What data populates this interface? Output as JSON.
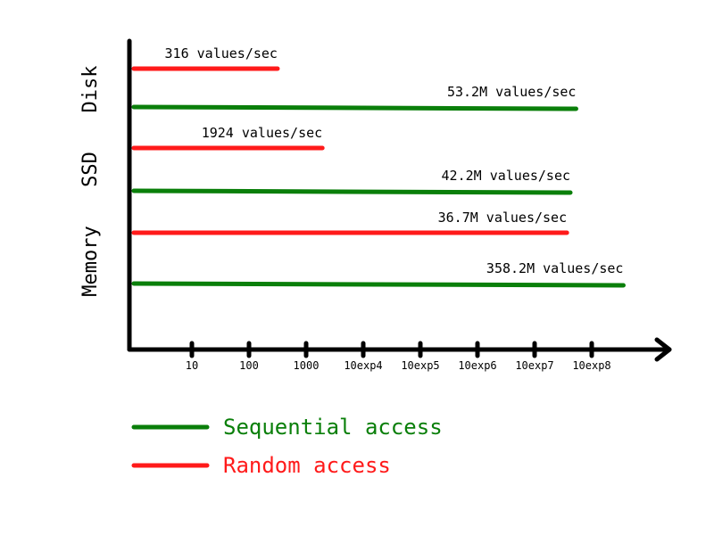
{
  "chart_data": {
    "type": "bar",
    "orientation": "horizontal",
    "x_scale": "log10",
    "x_ticks": [
      {
        "value": 10,
        "label": "10"
      },
      {
        "value": 100,
        "label": "100"
      },
      {
        "value": 1000,
        "label": "1000"
      },
      {
        "value": 10000,
        "label": "10exp4"
      },
      {
        "value": 100000,
        "label": "10exp5"
      },
      {
        "value": 1000000,
        "label": "10exp6"
      },
      {
        "value": 10000000,
        "label": "10exp7"
      },
      {
        "value": 100000000,
        "label": "10exp8"
      }
    ],
    "groups": [
      {
        "label": "Disk",
        "bars": [
          {
            "series": "Random access",
            "value": 316,
            "label": "316 values/sec"
          },
          {
            "series": "Sequential access",
            "value": 53200000,
            "label": "53.2M values/sec"
          }
        ]
      },
      {
        "label": "SSD",
        "bars": [
          {
            "series": "Random access",
            "value": 1924,
            "label": "1924 values/sec"
          },
          {
            "series": "Sequential access",
            "value": 42200000,
            "label": "42.2M values/sec"
          }
        ]
      },
      {
        "label": "Memory",
        "bars": [
          {
            "series": "Random access",
            "value": 36700000,
            "label": "36.7M values/sec"
          },
          {
            "series": "Sequential access",
            "value": 358200000,
            "label": "358.2M values/sec"
          }
        ]
      }
    ],
    "legend": [
      {
        "name": "Sequential access",
        "color": "#0a7f0a"
      },
      {
        "name": "Random access",
        "color": "#ff1a1a"
      }
    ],
    "legend_position": "bottom-left",
    "grid": false,
    "axis_color": "#000000"
  }
}
